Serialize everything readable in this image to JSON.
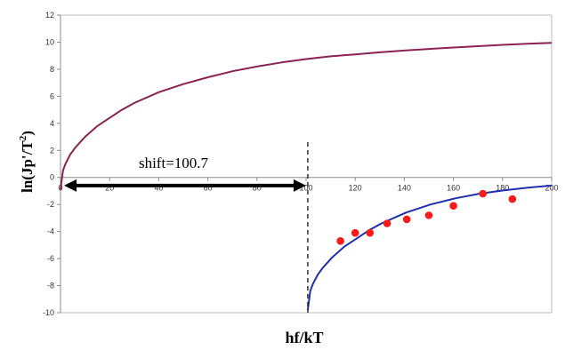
{
  "chart_data": {
    "type": "line",
    "title": "",
    "xlabel": "hf/kT",
    "ylabel": "ln(Jp'/T",
    "ylabel_sup": "2",
    "ylabel_close": ")",
    "xlim": [
      0,
      200
    ],
    "ylim": [
      -10,
      12
    ],
    "x_ticks": [
      0,
      20,
      40,
      60,
      80,
      100,
      120,
      140,
      160,
      180,
      200
    ],
    "y_ticks": [
      -10,
      -8,
      -6,
      -4,
      -2,
      0,
      2,
      4,
      6,
      8,
      10,
      12
    ],
    "grid": false,
    "legend": "none",
    "series": [
      {
        "style": "line",
        "color": "#8b2252",
        "x": [
          0,
          1,
          2,
          4,
          6,
          8,
          10,
          15,
          20,
          25,
          30,
          40,
          50,
          60,
          70,
          80,
          90,
          100,
          110,
          120,
          130,
          140,
          150,
          160,
          170,
          180,
          190,
          200
        ],
        "y": [
          -0.9,
          0.5,
          1.0,
          1.7,
          2.2,
          2.6,
          3.0,
          3.8,
          4.4,
          5.0,
          5.5,
          6.3,
          6.9,
          7.4,
          7.85,
          8.2,
          8.5,
          8.75,
          8.95,
          9.1,
          9.25,
          9.38,
          9.5,
          9.6,
          9.7,
          9.8,
          9.88,
          9.95
        ]
      },
      {
        "style": "line",
        "color": "#1f2fb0",
        "x": [
          100.7,
          101.7,
          102.7,
          104.7,
          106.7,
          108.7,
          110.7,
          115.7,
          120.7,
          125.7,
          130.7,
          140.7,
          150.7,
          160.7,
          170.7,
          180.7,
          190.7,
          200
        ],
        "y": [
          -9.8,
          -8.4,
          -7.9,
          -7.2,
          -6.7,
          -6.3,
          -5.9,
          -5.1,
          -4.5,
          -3.9,
          -3.4,
          -2.6,
          -2.0,
          -1.55,
          -1.2,
          -0.95,
          -0.75,
          -0.6
        ]
      },
      {
        "style": "scatter",
        "color": "#ff1a1a",
        "x": [
          114,
          120,
          126,
          133,
          141,
          150,
          160,
          172,
          184
        ],
        "y": [
          -4.7,
          -4.1,
          -4.1,
          -3.4,
          -3.1,
          -2.8,
          -2.1,
          -1.2,
          -1.6
        ]
      }
    ],
    "annotations": [
      {
        "text": "shift=100.7",
        "x_from": 0,
        "x_to": 100.7,
        "y": -0.6
      }
    ],
    "vline_x": 100.7
  }
}
